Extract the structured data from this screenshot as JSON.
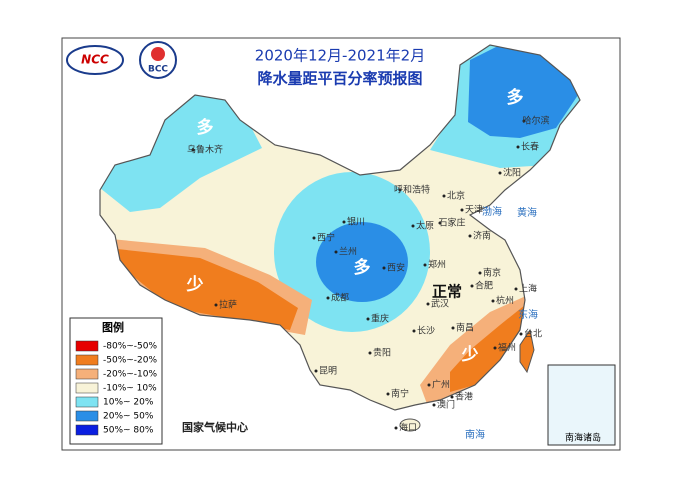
{
  "header": {
    "logos": [
      "NCC",
      "BCC"
    ],
    "title": "2020年12月-2021年2月",
    "subtitle": "降水量距平百分率预报图"
  },
  "legend": {
    "title": "图例",
    "items": [
      {
        "label": "-80%~-50%",
        "color": "#e60000"
      },
      {
        "label": "-50%~-20%",
        "color": "#f07d1e"
      },
      {
        "label": "-20%~-10%",
        "color": "#f5b07a"
      },
      {
        "label": "-10%~ 10%",
        "color": "#f8f3d8"
      },
      {
        "label": "10%~ 20%",
        "color": "#7ee3f2"
      },
      {
        "label": "20%~ 50%",
        "color": "#2a8ee6"
      },
      {
        "label": "50%~ 80%",
        "color": "#0a1ee0"
      }
    ]
  },
  "zones": [
    "多",
    "多",
    "多",
    "少",
    "少",
    "正常"
  ],
  "cities": [
    "乌鲁木齐",
    "哈尔滨",
    "长春",
    "沈阳",
    "呼和浩特",
    "北京",
    "天津",
    "石家庄",
    "太原",
    "济南",
    "银川",
    "西宁",
    "兰州",
    "西安",
    "郑州",
    "南京",
    "合肥",
    "上海",
    "武汉",
    "杭州",
    "成都",
    "重庆",
    "长沙",
    "南昌",
    "福州",
    "贵阳",
    "昆明",
    "拉萨",
    "广州",
    "南宁",
    "香港",
    "澳门",
    "台北",
    "海口"
  ],
  "seas": [
    "渤海",
    "黄海",
    "东海",
    "南海"
  ],
  "footer": "国家气候中心",
  "inset": "南海诸岛"
}
